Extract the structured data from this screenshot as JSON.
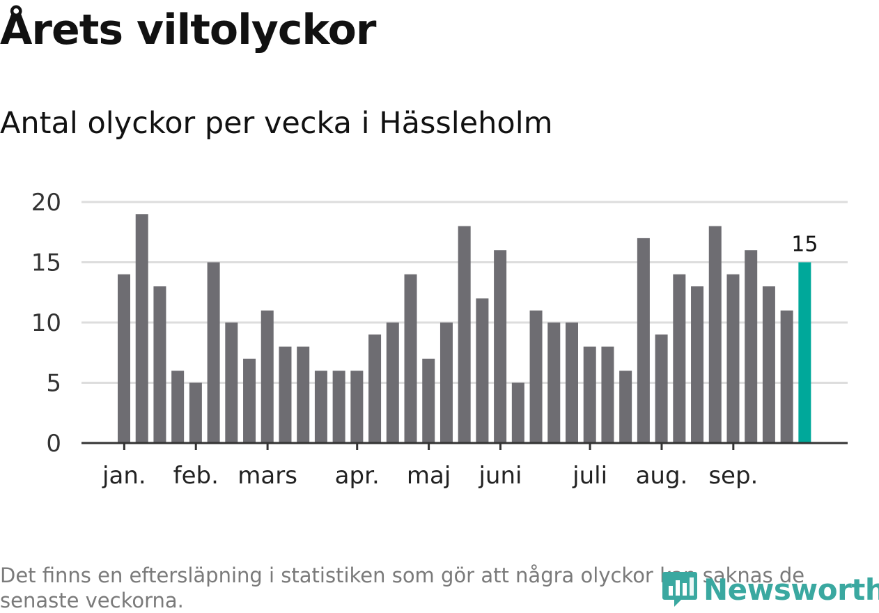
{
  "header": {
    "title": "Årets viltolyckor",
    "subtitle": "Antal olyckor per vecka i Hässleholm"
  },
  "footnote": "Det finns en eftersläpning i statistiken som gör att några olyckor kan saknas de senaste veckorna.",
  "brand": {
    "name": "Newsworthy",
    "color": "#3aa8a0"
  },
  "colors": {
    "bar": "#6e6d72",
    "highlight": "#00a89a",
    "grid": "#dddddd",
    "axis": "#333333"
  },
  "chart_data": {
    "type": "bar",
    "title": "Antal olyckor per vecka i Hässleholm",
    "xlabel": "",
    "ylabel": "",
    "ylim": [
      0,
      20
    ],
    "yticks": [
      0,
      5,
      10,
      15,
      20
    ],
    "grid": true,
    "values": [
      14,
      19,
      13,
      6,
      5,
      15,
      10,
      7,
      11,
      8,
      8,
      6,
      6,
      6,
      9,
      10,
      14,
      7,
      10,
      18,
      12,
      16,
      5,
      11,
      10,
      10,
      8,
      8,
      6,
      17,
      9,
      14,
      13,
      18,
      14,
      16,
      13,
      11,
      15
    ],
    "highlight_index": 38,
    "highlight_label": "15",
    "month_labels": [
      {
        "label": "jan.",
        "bar": 0.5
      },
      {
        "label": "feb.",
        "bar": 4.5
      },
      {
        "label": "mars",
        "bar": 8.5
      },
      {
        "label": "apr.",
        "bar": 13.5
      },
      {
        "label": "maj",
        "bar": 17.5
      },
      {
        "label": "juni",
        "bar": 21.5
      },
      {
        "label": "juli",
        "bar": 26.5
      },
      {
        "label": "aug.",
        "bar": 30.5
      },
      {
        "label": "sep.",
        "bar": 34.5
      }
    ]
  }
}
